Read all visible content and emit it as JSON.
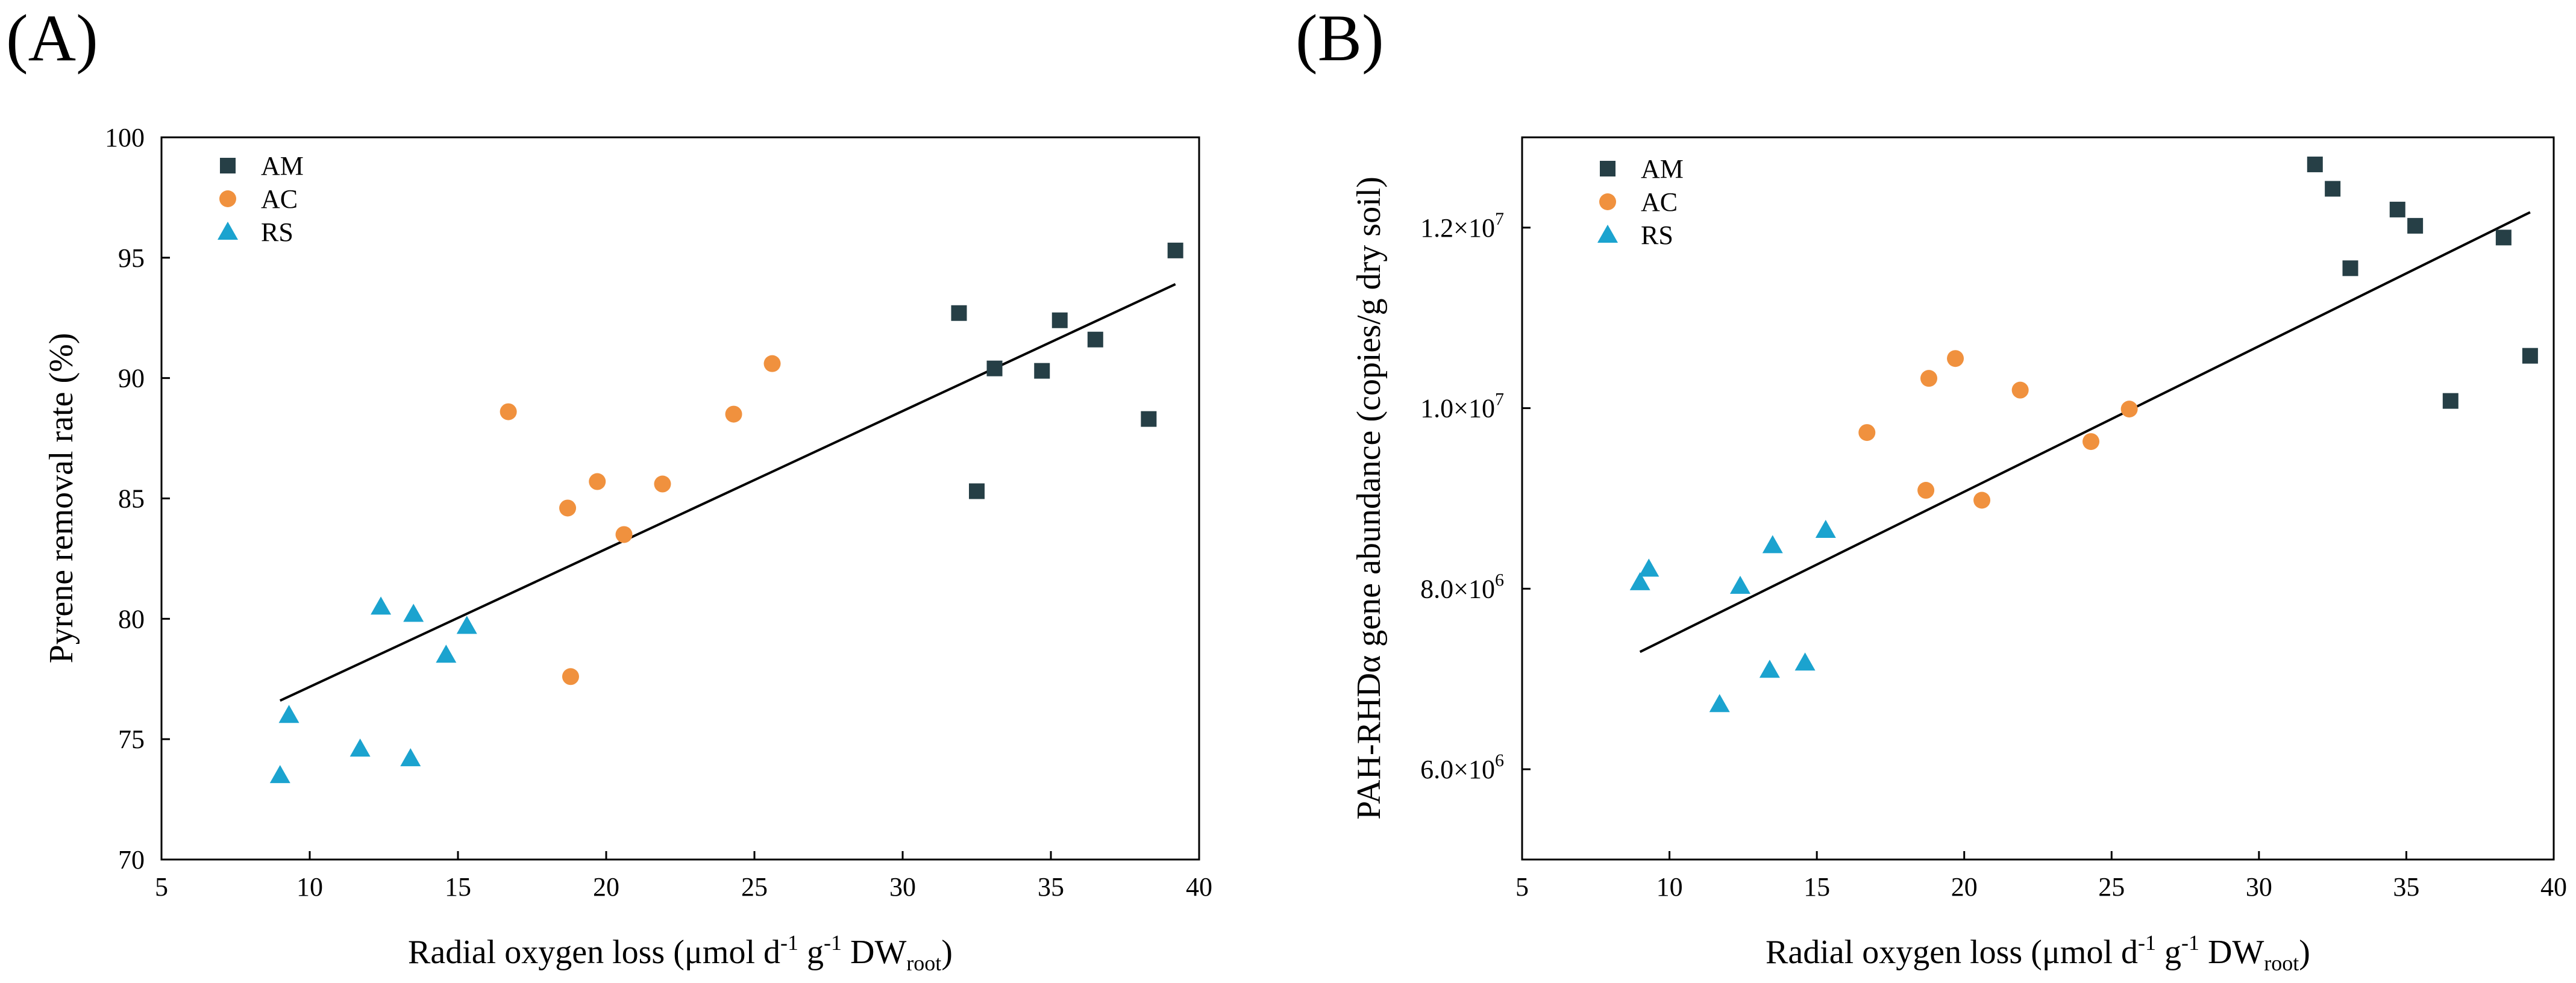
{
  "colors": {
    "AM": "#263f46",
    "AC": "#f0913e",
    "RS": "#1ba3cf",
    "axis": "#000000",
    "fit": "#000000"
  },
  "chart_data": [
    {
      "panel_label": "(A)",
      "type": "scatter",
      "xlabel": {
        "main": "Radial oxygen loss (μmol d",
        "sup1": "-1",
        "mid": " g",
        "sup2": "-1",
        "tail": " DW",
        "sub": "root",
        "close": ")"
      },
      "ylabel": "Pyrene removal rate (%)",
      "xlim": [
        5,
        40
      ],
      "ylim": [
        70,
        100
      ],
      "xticks": [
        5,
        10,
        15,
        20,
        25,
        30,
        35,
        40
      ],
      "yticks": [
        70,
        75,
        80,
        85,
        90,
        95,
        100
      ],
      "xtick_labels": [
        "5",
        "10",
        "15",
        "20",
        "25",
        "30",
        "35",
        "40"
      ],
      "ytick_labels": [
        "70",
        "75",
        "80",
        "85",
        "90",
        "95",
        "100"
      ],
      "legend": [
        "AM",
        "AC",
        "RS"
      ],
      "legend_position": "top-left",
      "series": [
        {
          "name": "AM",
          "marker": "square",
          "points": [
            [
              31.9,
              92.7
            ],
            [
              32.5,
              85.3
            ],
            [
              33.1,
              90.4
            ],
            [
              34.7,
              90.3
            ],
            [
              35.3,
              92.4
            ],
            [
              36.5,
              91.6
            ],
            [
              38.3,
              88.3
            ],
            [
              39.2,
              95.3
            ]
          ]
        },
        {
          "name": "AC",
          "marker": "circle",
          "points": [
            [
              16.7,
              88.6
            ],
            [
              18.7,
              84.6
            ],
            [
              18.8,
              77.6
            ],
            [
              19.7,
              85.7
            ],
            [
              20.6,
              83.5
            ],
            [
              21.9,
              85.6
            ],
            [
              24.3,
              88.5
            ],
            [
              25.6,
              90.6
            ]
          ]
        },
        {
          "name": "RS",
          "marker": "triangle",
          "points": [
            [
              9.0,
              73.5
            ],
            [
              9.3,
              76.0
            ],
            [
              11.7,
              74.6
            ],
            [
              12.4,
              80.5
            ],
            [
              13.4,
              74.2
            ],
            [
              13.5,
              80.2
            ],
            [
              14.6,
              78.5
            ],
            [
              15.3,
              79.7
            ]
          ]
        }
      ],
      "fit_line": [
        [
          9.0,
          76.6
        ],
        [
          39.2,
          93.9
        ]
      ]
    },
    {
      "panel_label": "(B)",
      "type": "scatter",
      "xlabel": {
        "main": "Radial oxygen loss (μmol d",
        "sup1": "-1",
        "mid": " g",
        "sup2": "-1",
        "tail": " DW",
        "sub": "root",
        "close": ")"
      },
      "ylabel": "PAH-RHDα gene abundance (copies/g dry soil)",
      "xlim": [
        5,
        40
      ],
      "ylim": [
        5000000,
        13000000
      ],
      "xticks": [
        5,
        10,
        15,
        20,
        25,
        30,
        35,
        40
      ],
      "yticks": [
        6000000,
        8000000,
        10000000,
        12000000
      ],
      "xtick_labels": [
        "5",
        "10",
        "15",
        "20",
        "25",
        "30",
        "35",
        "40"
      ],
      "ytick_labels": [
        {
          "mant": "6.0×10",
          "exp": "6"
        },
        {
          "mant": "8.0×10",
          "exp": "6"
        },
        {
          "mant": "1.0×10",
          "exp": "7"
        },
        {
          "mant": "1.2×10",
          "exp": "7"
        }
      ],
      "legend": [
        "AM",
        "AC",
        "RS"
      ],
      "legend_position": "top-left",
      "series": [
        {
          "name": "AM",
          "marker": "square",
          "points": [
            [
              31.9,
              12700000
            ],
            [
              32.5,
              12430000
            ],
            [
              33.1,
              11550000
            ],
            [
              34.7,
              12200000
            ],
            [
              35.3,
              12020000
            ],
            [
              36.5,
              10080000
            ],
            [
              38.3,
              11890000
            ],
            [
              39.2,
              10580000
            ]
          ]
        },
        {
          "name": "AC",
          "marker": "circle",
          "points": [
            [
              16.7,
              9730000
            ],
            [
              18.7,
              9090000
            ],
            [
              18.8,
              10330000
            ],
            [
              19.7,
              10550000
            ],
            [
              20.6,
              8980000
            ],
            [
              21.9,
              10200000
            ],
            [
              24.3,
              9630000
            ],
            [
              25.6,
              9990000
            ]
          ]
        },
        {
          "name": "RS",
          "marker": "triangle",
          "points": [
            [
              9.0,
              8070000
            ],
            [
              9.3,
              8220000
            ],
            [
              11.7,
              6720000
            ],
            [
              12.4,
              8030000
            ],
            [
              13.4,
              7100000
            ],
            [
              13.5,
              8480000
            ],
            [
              14.6,
              7180000
            ],
            [
              15.3,
              8650000
            ]
          ]
        }
      ],
      "fit_line": [
        [
          9.0,
          7300000
        ],
        [
          39.2,
          12170000
        ]
      ]
    }
  ]
}
